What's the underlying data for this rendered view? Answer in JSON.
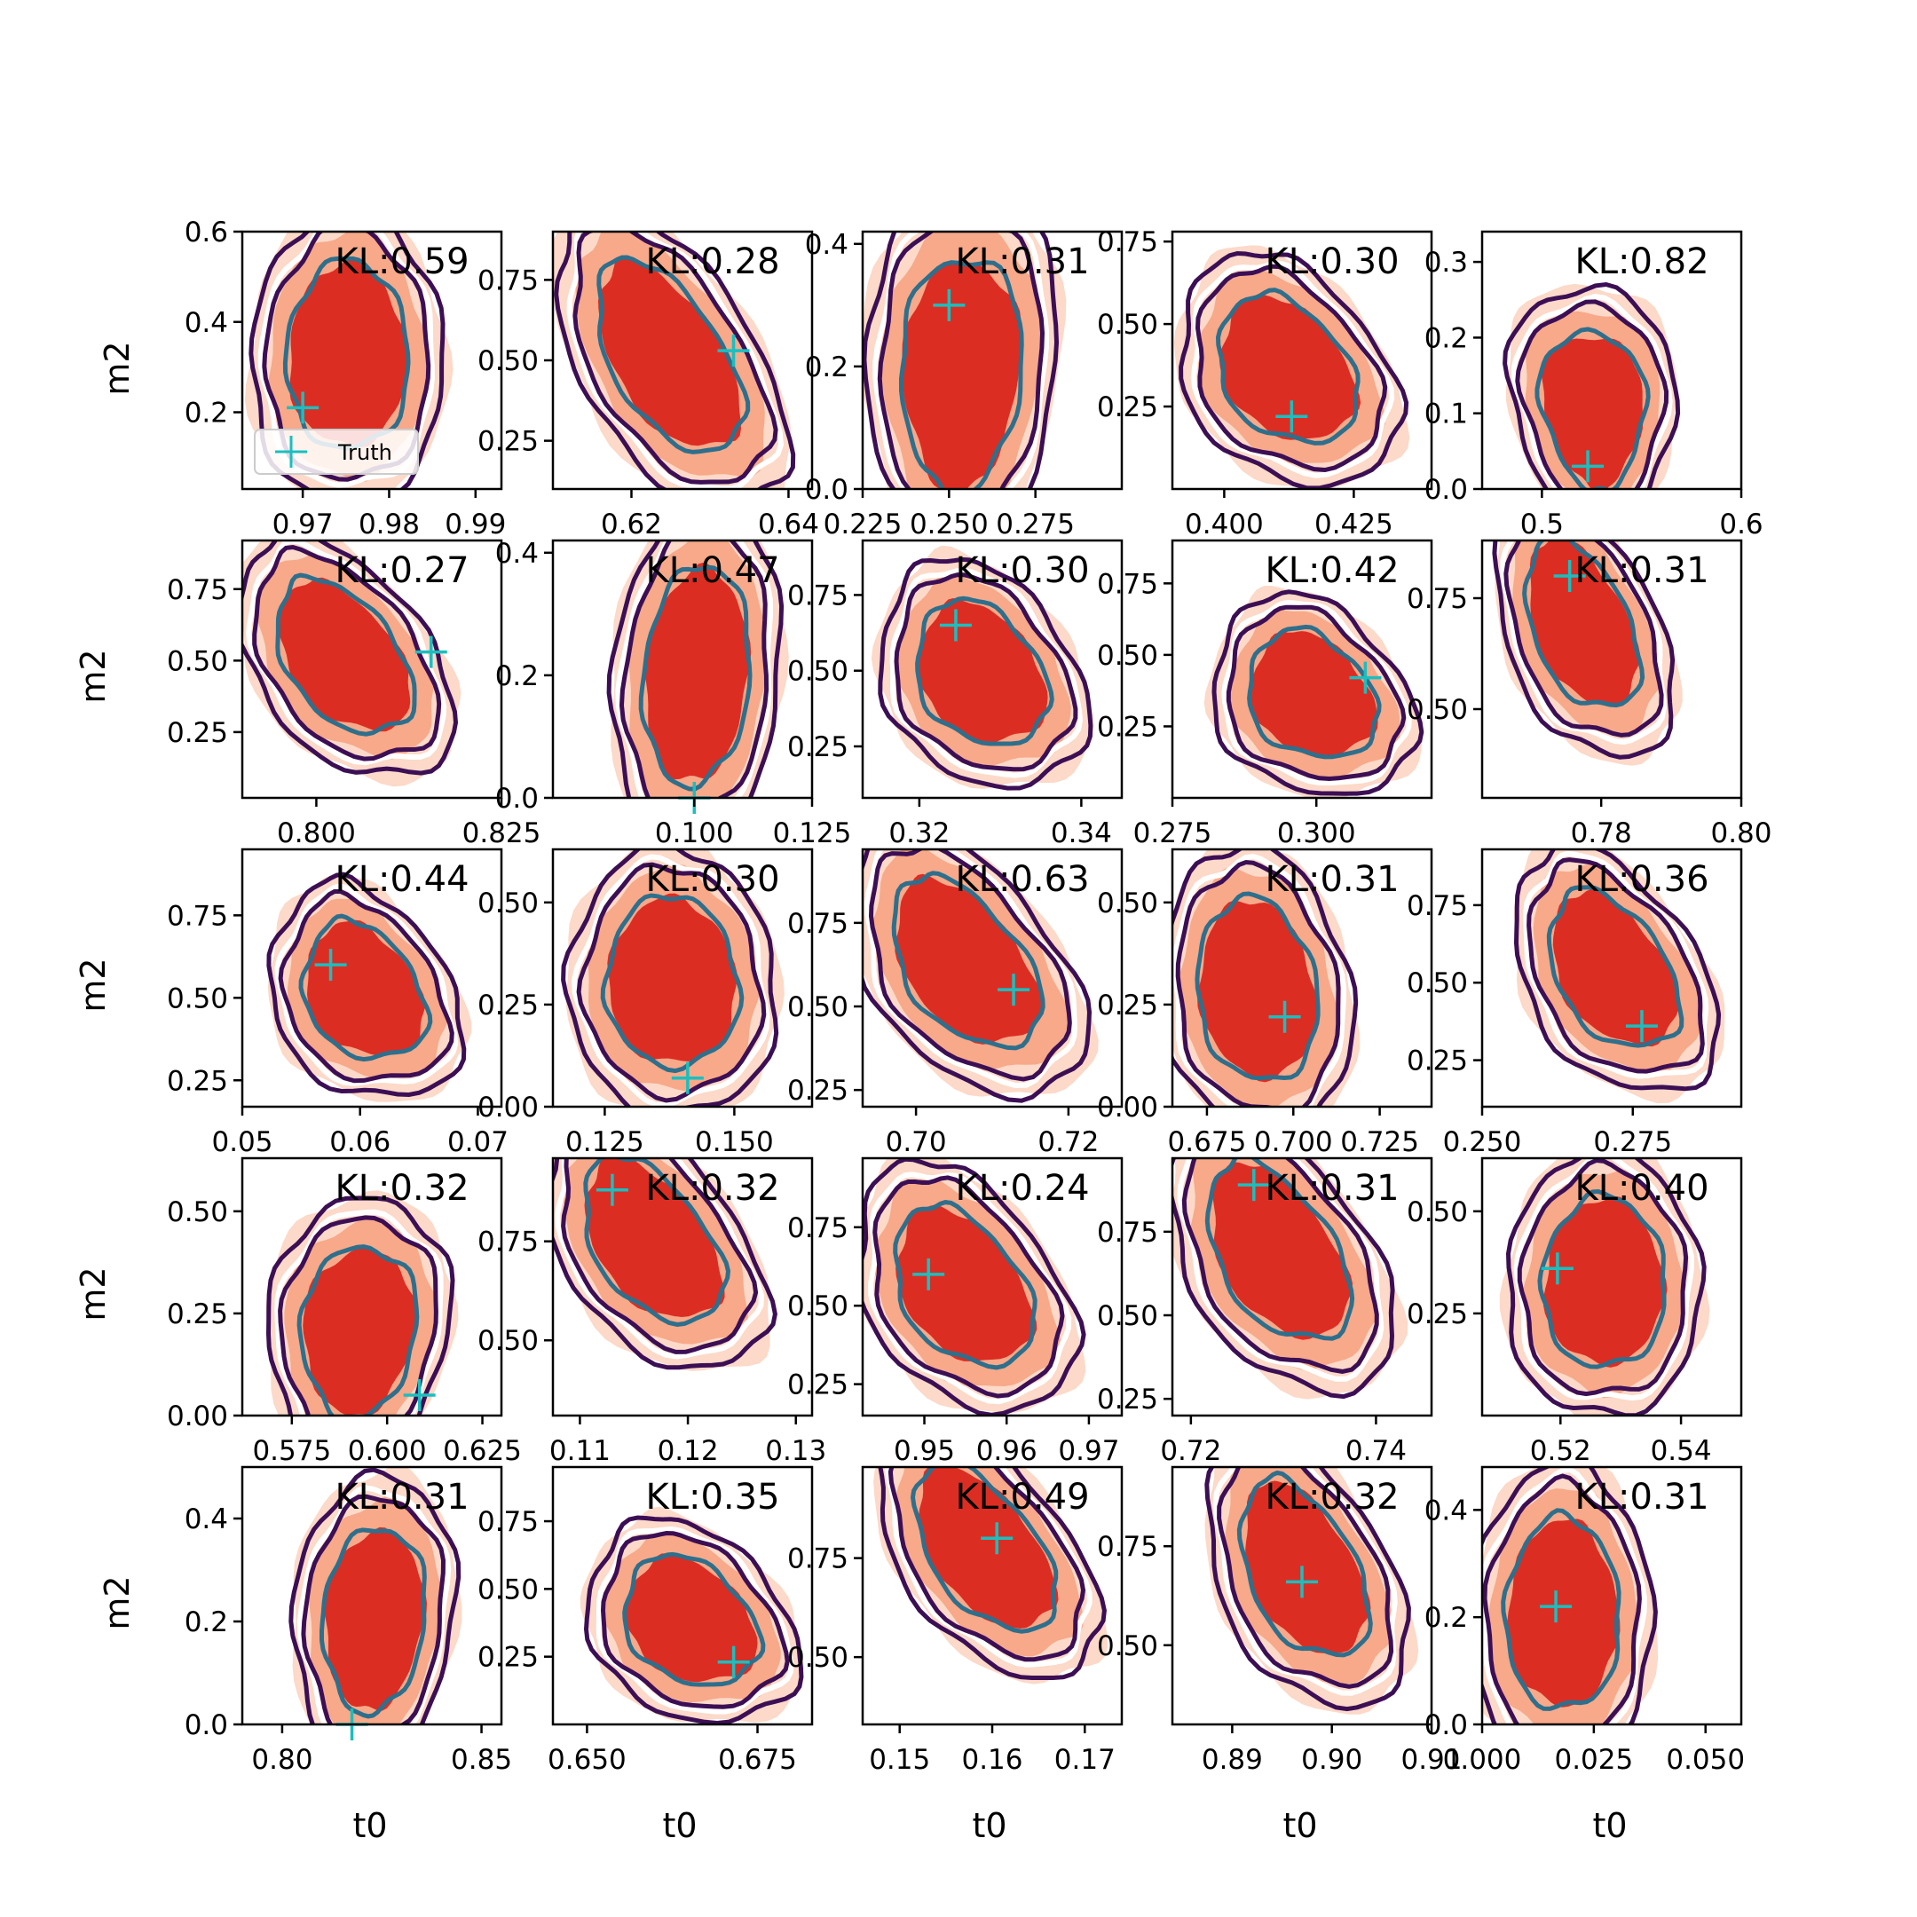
{
  "figure": {
    "xlabel": "t0",
    "ylabel": "m2",
    "legend": {
      "label": "Truth",
      "placement": "lower-left of first panel"
    }
  },
  "colors": {
    "fill_outer": "#fcd9c8",
    "fill_mid": "#f7a989",
    "fill_inner": "#dc2d23",
    "contour_outer": "#3c0f55",
    "contour_mid": "#ffffff",
    "contour_inner": "#2e6f8c",
    "truth_marker": "#1abfbf"
  },
  "chart_data": [
    {
      "type": "contour",
      "kl_label": "KL:0.59",
      "xticks": [
        "0.97",
        "0.98",
        "0.99"
      ],
      "xlim": [
        0.963,
        0.993
      ],
      "yticks": [
        "0.2",
        "0.4",
        "0.6"
      ],
      "ylim": [
        0.03,
        0.6
      ],
      "truth": [
        0.97,
        0.21
      ],
      "center": [
        0.9752,
        0.33
      ],
      "spread": [
        0.0047,
        0.14
      ],
      "tilt": 0.0,
      "skew": 0.1
    },
    {
      "type": "contour",
      "kl_label": "KL:0.28",
      "xticks": [
        "0.62",
        "0.64"
      ],
      "xlim": [
        0.61,
        0.643
      ],
      "yticks": [
        "0.25",
        "0.50",
        "0.75"
      ],
      "ylim": [
        0.1,
        0.9
      ],
      "truth": [
        0.633,
        0.53
      ],
      "center": [
        0.6245,
        0.52
      ],
      "spread": [
        0.0052,
        0.2
      ],
      "tilt": -0.72,
      "skew": 0.15
    },
    {
      "type": "contour",
      "kl_label": "KL:0.31",
      "xticks": [
        "0.225",
        "0.250",
        "0.275"
      ],
      "xlim": [
        0.225,
        0.3
      ],
      "yticks": [
        "0.0",
        "0.2",
        "0.4"
      ],
      "ylim": [
        0.0,
        0.42
      ],
      "truth": [
        0.25,
        0.3
      ],
      "center": [
        0.2535,
        0.18
      ],
      "spread": [
        0.0115,
        0.13
      ],
      "tilt": 0.08,
      "skew": -0.2
    },
    {
      "type": "contour",
      "kl_label": "KL:0.30",
      "xticks": [
        "0.400",
        "0.425"
      ],
      "xlim": [
        0.39,
        0.44
      ],
      "yticks": [
        "0.25",
        "0.50",
        "0.75"
      ],
      "ylim": [
        0.0,
        0.78
      ],
      "truth": [
        0.413,
        0.22
      ],
      "center": [
        0.4118,
        0.37
      ],
      "spread": [
        0.0085,
        0.15
      ],
      "tilt": -0.35,
      "skew": 0.2
    },
    {
      "type": "contour",
      "kl_label": "KL:0.82",
      "xticks": [
        "0.5",
        "0.6"
      ],
      "xlim": [
        0.47,
        0.6
      ],
      "yticks": [
        "0.0",
        "0.1",
        "0.2",
        "0.3"
      ],
      "ylim": [
        0.0,
        0.34
      ],
      "truth": [
        0.523,
        0.03
      ],
      "center": [
        0.526,
        0.1
      ],
      "spread": [
        0.017,
        0.07
      ],
      "tilt": -0.12,
      "skew": -0.3
    },
    {
      "type": "contour",
      "kl_label": "KL:0.27",
      "xticks": [
        "0.800",
        "0.825"
      ],
      "xlim": [
        0.79,
        0.825
      ],
      "yticks": [
        "0.25",
        "0.50",
        "0.75"
      ],
      "ylim": [
        0.02,
        0.92
      ],
      "truth": [
        0.8155,
        0.53
      ],
      "center": [
        0.8035,
        0.52
      ],
      "spread": [
        0.0055,
        0.18
      ],
      "tilt": -0.55,
      "skew": 0.15
    },
    {
      "type": "contour",
      "kl_label": "KL:0.47",
      "xticks": [
        "0.100",
        "0.125"
      ],
      "xlim": [
        0.07,
        0.125
      ],
      "yticks": [
        "0.0",
        "0.2",
        "0.4"
      ],
      "ylim": [
        0.0,
        0.42
      ],
      "truth": [
        0.1,
        0.0
      ],
      "center": [
        0.1005,
        0.2
      ],
      "spread": [
        0.0075,
        0.12
      ],
      "tilt": 0.15,
      "skew": 0.0
    },
    {
      "type": "contour",
      "kl_label": "KL:0.30",
      "xticks": [
        "0.32",
        "0.34"
      ],
      "xlim": [
        0.313,
        0.345
      ],
      "yticks": [
        "0.25",
        "0.50",
        "0.75"
      ],
      "ylim": [
        0.08,
        0.93
      ],
      "truth": [
        0.3245,
        0.65
      ],
      "center": [
        0.3275,
        0.5
      ],
      "spread": [
        0.0052,
        0.16
      ],
      "tilt": -0.3,
      "skew": 0.2
    },
    {
      "type": "contour",
      "kl_label": "KL:0.42",
      "xticks": [
        "0.275",
        "0.300"
      ],
      "xlim": [
        0.275,
        0.32
      ],
      "yticks": [
        "0.25",
        "0.50",
        "0.75"
      ],
      "ylim": [
        0.0,
        0.9
      ],
      "truth": [
        0.3085,
        0.42
      ],
      "center": [
        0.299,
        0.37
      ],
      "spread": [
        0.0072,
        0.15
      ],
      "tilt": -0.25,
      "skew": 0.25
    },
    {
      "type": "contour",
      "kl_label": "KL:0.31",
      "xticks": [
        "0.78",
        "0.80"
      ],
      "xlim": [
        0.763,
        0.8
      ],
      "yticks": [
        "0.50",
        "0.75"
      ],
      "ylim": [
        0.3,
        0.88
      ],
      "truth": [
        0.7755,
        0.8
      ],
      "center": [
        0.777,
        0.7
      ],
      "spread": [
        0.0048,
        0.13
      ],
      "tilt": -0.55,
      "skew": 0.2
    },
    {
      "type": "contour",
      "kl_label": "KL:0.44",
      "xticks": [
        "0.05",
        "0.06",
        "0.07"
      ],
      "xlim": [
        0.05,
        0.072
      ],
      "yticks": [
        "0.25",
        "0.50",
        "0.75"
      ],
      "ylim": [
        0.17,
        0.95
      ],
      "truth": [
        0.0575,
        0.6
      ],
      "center": [
        0.0602,
        0.53
      ],
      "spread": [
        0.0033,
        0.14
      ],
      "tilt": -0.3,
      "skew": 0.25
    },
    {
      "type": "contour",
      "kl_label": "KL:0.30",
      "xticks": [
        "0.125",
        "0.150"
      ],
      "xlim": [
        0.115,
        0.165
      ],
      "yticks": [
        "0.00",
        "0.25",
        "0.50"
      ],
      "ylim": [
        0.0,
        0.63
      ],
      "truth": [
        0.141,
        0.07
      ],
      "center": [
        0.138,
        0.31
      ],
      "spread": [
        0.0085,
        0.14
      ],
      "tilt": -0.05,
      "skew": 0.1
    },
    {
      "type": "contour",
      "kl_label": "KL:0.63",
      "xticks": [
        "0.70",
        "0.72"
      ],
      "xlim": [
        0.693,
        0.727
      ],
      "yticks": [
        "0.25",
        "0.50",
        "0.75"
      ],
      "ylim": [
        0.2,
        0.97
      ],
      "truth": [
        0.7128,
        0.55
      ],
      "center": [
        0.7062,
        0.64
      ],
      "spread": [
        0.0057,
        0.17
      ],
      "tilt": -0.6,
      "skew": 0.2
    },
    {
      "type": "contour",
      "kl_label": "KL:0.31",
      "xticks": [
        "0.675",
        "0.700",
        "0.725"
      ],
      "xlim": [
        0.665,
        0.74
      ],
      "yticks": [
        "0.00",
        "0.25",
        "0.50"
      ],
      "ylim": [
        0.0,
        0.63
      ],
      "truth": [
        0.6975,
        0.22
      ],
      "center": [
        0.6895,
        0.29
      ],
      "spread": [
        0.0115,
        0.15
      ],
      "tilt": -0.15,
      "skew": 0.1
    },
    {
      "type": "contour",
      "kl_label": "KL:0.36",
      "xticks": [
        "0.250",
        "0.275"
      ],
      "xlim": [
        0.25,
        0.293
      ],
      "yticks": [
        "0.25",
        "0.50",
        "0.75"
      ],
      "ylim": [
        0.1,
        0.93
      ],
      "truth": [
        0.2765,
        0.36
      ],
      "center": [
        0.2715,
        0.55
      ],
      "spread": [
        0.0065,
        0.17
      ],
      "tilt": -0.5,
      "skew": 0.2
    },
    {
      "type": "contour",
      "kl_label": "KL:0.32",
      "xticks": [
        "0.575",
        "0.600",
        "0.625"
      ],
      "xlim": [
        0.562,
        0.63
      ],
      "yticks": [
        "0.00",
        "0.25",
        "0.50"
      ],
      "ylim": [
        0.0,
        0.63
      ],
      "truth": [
        0.6085,
        0.05
      ],
      "center": [
        0.5925,
        0.2
      ],
      "spread": [
        0.01,
        0.14
      ],
      "tilt": 0.1,
      "skew": -0.15
    },
    {
      "type": "contour",
      "kl_label": "KL:0.32",
      "xticks": [
        "0.11",
        "0.12",
        "0.13"
      ],
      "xlim": [
        0.1075,
        0.1315
      ],
      "yticks": [
        "0.50",
        "0.75"
      ],
      "ylim": [
        0.31,
        0.96
      ],
      "truth": [
        0.113,
        0.88
      ],
      "center": [
        0.1165,
        0.76
      ],
      "spread": [
        0.0038,
        0.14
      ],
      "tilt": -0.6,
      "skew": 0.2
    },
    {
      "type": "contour",
      "kl_label": "KL:0.24",
      "xticks": [
        "0.95",
        "0.96",
        "0.97"
      ],
      "xlim": [
        0.9425,
        0.974
      ],
      "yticks": [
        "0.25",
        "0.50",
        "0.75"
      ],
      "ylim": [
        0.15,
        0.97
      ],
      "truth": [
        0.9505,
        0.6
      ],
      "center": [
        0.9545,
        0.57
      ],
      "spread": [
        0.0052,
        0.17
      ],
      "tilt": -0.45,
      "skew": 0.2
    },
    {
      "type": "contour",
      "kl_label": "KL:0.31",
      "xticks": [
        "0.72",
        "0.74"
      ],
      "xlim": [
        0.718,
        0.746
      ],
      "yticks": [
        "0.25",
        "0.50",
        "0.75"
      ],
      "ylim": [
        0.2,
        0.97
      ],
      "truth": [
        0.7268,
        0.89
      ],
      "center": [
        0.7292,
        0.7
      ],
      "spread": [
        0.0045,
        0.18
      ],
      "tilt": -0.6,
      "skew": 0.2
    },
    {
      "type": "contour",
      "kl_label": "KL:0.40",
      "xticks": [
        "0.52",
        "0.54"
      ],
      "xlim": [
        0.507,
        0.55
      ],
      "yticks": [
        "0.25",
        "0.50"
      ],
      "ylim": [
        0.0,
        0.63
      ],
      "truth": [
        0.5195,
        0.36
      ],
      "center": [
        0.5272,
        0.33
      ],
      "spread": [
        0.0068,
        0.14
      ],
      "tilt": 0.0,
      "skew": 0.1
    },
    {
      "type": "contour",
      "kl_label": "KL:0.31",
      "xticks": [
        "0.80",
        "0.85"
      ],
      "xlim": [
        0.79,
        0.855
      ],
      "yticks": [
        "0.0",
        "0.2",
        "0.4"
      ],
      "ylim": [
        0.0,
        0.5
      ],
      "truth": [
        0.8175,
        0.0
      ],
      "center": [
        0.823,
        0.2
      ],
      "spread": [
        0.0085,
        0.12
      ],
      "tilt": 0.12,
      "skew": -0.1
    },
    {
      "type": "contour",
      "kl_label": "KL:0.35",
      "xticks": [
        "0.650",
        "0.675"
      ],
      "xlim": [
        0.645,
        0.683
      ],
      "yticks": [
        "0.25",
        "0.50",
        "0.75"
      ],
      "ylim": [
        0.0,
        0.95
      ],
      "truth": [
        0.6715,
        0.23
      ],
      "center": [
        0.665,
        0.39
      ],
      "spread": [
        0.0063,
        0.16
      ],
      "tilt": -0.3,
      "skew": 0.2
    },
    {
      "type": "contour",
      "kl_label": "KL:0.49",
      "xticks": [
        "0.15",
        "0.16",
        "0.17"
      ],
      "xlim": [
        0.146,
        0.174
      ],
      "yticks": [
        "0.50",
        "0.75"
      ],
      "ylim": [
        0.33,
        0.98
      ],
      "truth": [
        0.1605,
        0.8
      ],
      "center": [
        0.159,
        0.78
      ],
      "spread": [
        0.0043,
        0.14
      ],
      "tilt": -0.7,
      "skew": 0.15
    },
    {
      "type": "contour",
      "kl_label": "KL:0.32",
      "xticks": [
        "0.89",
        "0.90",
        "0.91"
      ],
      "xlim": [
        0.884,
        0.91
      ],
      "yticks": [
        "0.50",
        "0.75"
      ],
      "ylim": [
        0.3,
        0.95
      ],
      "truth": [
        0.897,
        0.66
      ],
      "center": [
        0.897,
        0.7
      ],
      "spread": [
        0.0038,
        0.15
      ],
      "tilt": -0.55,
      "skew": 0.2
    },
    {
      "type": "contour",
      "kl_label": "KL:0.31",
      "xticks": [
        "0.000",
        "0.025",
        "0.050"
      ],
      "xlim": [
        0.0,
        0.058
      ],
      "yticks": [
        "0.0",
        "0.2",
        "0.4"
      ],
      "ylim": [
        0.0,
        0.48
      ],
      "truth": [
        0.0165,
        0.22
      ],
      "center": [
        0.018,
        0.21
      ],
      "spread": [
        0.0085,
        0.12
      ],
      "tilt": 0.0,
      "skew": 0.1
    }
  ]
}
